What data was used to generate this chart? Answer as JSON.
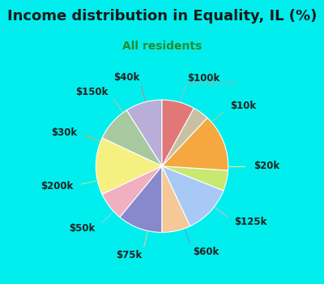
{
  "title": "Income distribution in Equality, IL (%)",
  "subtitle": "All residents",
  "title_color": "#1a1a1a",
  "subtitle_color": "#2a8a2a",
  "bg_color_top": "#00EEEE",
  "bg_color_chart": "#e8f5ee",
  "watermark": "City-Data.com",
  "labels": [
    "$100k",
    "$10k",
    "$20k",
    "$125k",
    "$60k",
    "$75k",
    "$50k",
    "$200k",
    "$30k",
    "$150k",
    "$40k"
  ],
  "sizes": [
    9,
    9,
    14,
    7,
    11,
    7,
    12,
    5,
    14,
    4,
    8
  ],
  "colors": [
    "#b8aed8",
    "#a8c8a0",
    "#f5f080",
    "#f0b0c0",
    "#8888cc",
    "#f5c898",
    "#a8c8f5",
    "#c8e870",
    "#f5a840",
    "#c8c0a0",
    "#e07878"
  ],
  "startangle": 90,
  "label_fontsize": 8.5,
  "title_fontsize": 13,
  "subtitle_fontsize": 10,
  "label_color": "#222222"
}
